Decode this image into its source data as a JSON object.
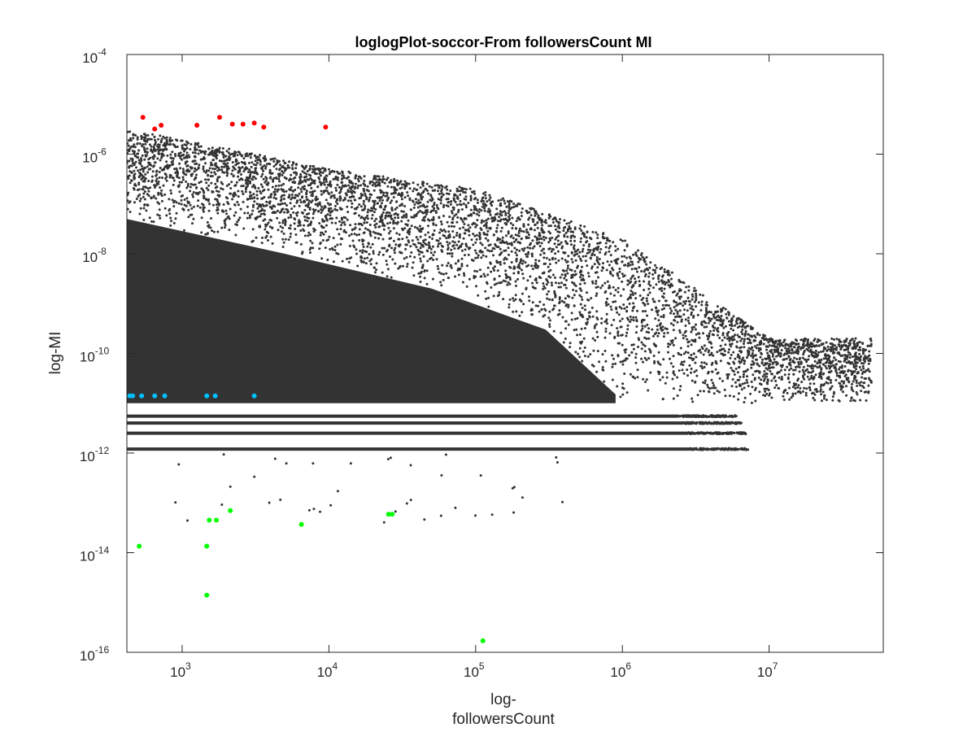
{
  "chart_data": {
    "type": "scatter",
    "title": "loglogPlot-soccor-From followersCount MI",
    "xlabel": [
      "log-",
      "followersCount"
    ],
    "ylabel": "log-MI",
    "xscale": "log",
    "yscale": "log",
    "xlim": [
      420,
      60000000
    ],
    "ylim": [
      1e-16,
      0.0001
    ],
    "grid": false,
    "legend": "none",
    "x_ticks": [
      {
        "base": "10",
        "exp": "3",
        "value": 1000
      },
      {
        "base": "10",
        "exp": "4",
        "value": 10000
      },
      {
        "base": "10",
        "exp": "5",
        "value": 100000
      },
      {
        "base": "10",
        "exp": "6",
        "value": 1000000
      },
      {
        "base": "10",
        "exp": "7",
        "value": 10000000
      }
    ],
    "y_ticks": [
      {
        "base": "10",
        "exp": "-4",
        "value": 0.0001
      },
      {
        "base": "10",
        "exp": "-6",
        "value": 1e-06
      },
      {
        "base": "10",
        "exp": "-8",
        "value": 1e-08
      },
      {
        "base": "10",
        "exp": "-10",
        "value": 1e-10
      },
      {
        "base": "10",
        "exp": "-12",
        "value": 1e-12
      },
      {
        "base": "10",
        "exp": "-14",
        "value": 1e-14
      },
      {
        "base": "10",
        "exp": "-16",
        "value": 1e-16
      }
    ],
    "colors": {
      "bulk": "#333333",
      "high": "#ff0000",
      "mid": "#00bfff",
      "low": "#00ff00",
      "axis": "#262626"
    },
    "bulk_region": {
      "description_points": "dense black cloud",
      "upper_envelope": [
        [
          420,
          3e-06
        ],
        [
          1000,
          2e-06
        ],
        [
          10000,
          5e-07
        ],
        [
          100000,
          2e-07
        ],
        [
          1000000,
          2e-08
        ],
        [
          10000000,
          2e-10
        ]
      ],
      "lower_edge": 1e-11,
      "bands": [
        5.5e-12,
        4e-12,
        2.5e-12,
        1.2e-12
      ]
    },
    "series": [
      {
        "color_key": "high",
        "x": [
          540,
          650,
          720,
          1260,
          1800,
          2200,
          2600,
          3100,
          3600,
          9500
        ],
        "y": [
          5.5e-06,
          3.2e-06,
          3.8e-06,
          3.8e-06,
          5.5e-06,
          4e-06,
          4e-06,
          4.2e-06,
          3.5e-06,
          3.5e-06
        ]
      },
      {
        "color_key": "mid",
        "x": [
          440,
          460,
          530,
          650,
          760,
          1470,
          1680,
          3100
        ],
        "y": [
          1.4e-11,
          1.4e-11,
          1.4e-11,
          1.4e-11,
          1.4e-11,
          1.4e-11,
          1.4e-11,
          1.4e-11
        ]
      },
      {
        "color_key": "low",
        "x": [
          510,
          1470,
          1530,
          1710,
          2130,
          6500,
          25500,
          27000,
          1470,
          112000
        ],
        "y": [
          1.35e-14,
          1.35e-14,
          4.5e-14,
          4.5e-14,
          7e-14,
          3.7e-14,
          5.9e-14,
          5.9e-14,
          1.4e-15,
          1.7e-16
        ]
      }
    ]
  }
}
